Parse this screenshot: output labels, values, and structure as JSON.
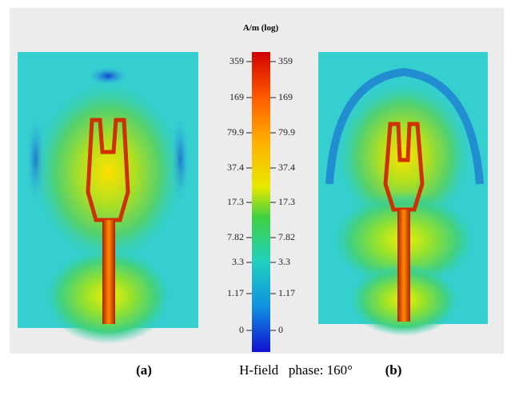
{
  "figure": {
    "colorbar": {
      "unit": "A/m (log)",
      "ticks": [
        "359",
        "169",
        "79.9",
        "37.4",
        "17.3",
        "7.82",
        "3.3",
        "1.17",
        "0"
      ]
    },
    "caption": {
      "left": "(a)",
      "middle": "H-field   phase: 160°",
      "right": "(b)"
    }
  }
}
